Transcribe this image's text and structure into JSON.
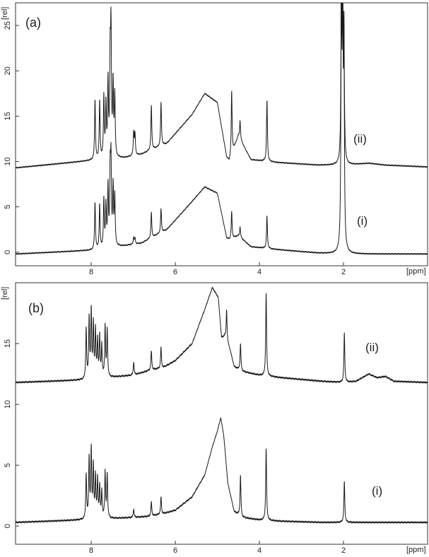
{
  "chart_data": [
    {
      "type": "line",
      "panel_label": "(a)",
      "xlabel": "[ppm]",
      "ylabel": "[rel]",
      "xlim": [
        9.8,
        0
      ],
      "ylim": [
        -1.5,
        27.5
      ],
      "x_reversed": true,
      "xticks": [
        8,
        6,
        4,
        2
      ],
      "yticks": [
        0,
        5,
        10,
        15,
        20,
        25
      ],
      "grid": false,
      "series": [
        {
          "name": "(ii)",
          "baseline": [
            [
              9.8,
              9.3
            ],
            [
              8.0,
              10.1
            ],
            [
              7.2,
              10.4
            ],
            [
              6.8,
              10.8
            ],
            [
              6.2,
              12.0
            ],
            [
              5.6,
              15.2
            ],
            [
              5.3,
              17.5
            ],
            [
              5.0,
              16.5
            ],
            [
              4.78,
              10.5
            ],
            [
              4.72,
              10.0
            ],
            [
              4.5,
              12.8
            ],
            [
              4.2,
              10.2
            ],
            [
              3.6,
              9.9
            ],
            [
              2.6,
              9.6
            ],
            [
              2.1,
              9.6
            ],
            [
              1.9,
              9.6
            ],
            [
              1.4,
              9.8
            ],
            [
              1.0,
              9.6
            ],
            [
              0,
              9.4
            ]
          ],
          "peaks": [
            {
              "x": 7.91,
              "h": 16.8
            },
            {
              "x": 7.8,
              "h": 16.6
            },
            {
              "x": 7.7,
              "h": 17.0
            },
            {
              "x": 7.65,
              "h": 16.0
            },
            {
              "x": 7.6,
              "h": 18.5
            },
            {
              "x": 7.55,
              "h": 20.2
            },
            {
              "x": 7.53,
              "h": 23.5
            },
            {
              "x": 7.48,
              "h": 18.2
            },
            {
              "x": 7.44,
              "h": 17.0
            },
            {
              "x": 6.99,
              "h": 13.2
            },
            {
              "x": 6.96,
              "h": 13.0
            },
            {
              "x": 6.57,
              "h": 16.2
            },
            {
              "x": 6.34,
              "h": 16.5
            },
            {
              "x": 4.66,
              "h": 17.8
            },
            {
              "x": 4.46,
              "h": 14.5
            },
            {
              "x": 3.82,
              "h": 16.8
            },
            {
              "x": 2.05,
              "h": 28.5
            },
            {
              "x": 2.02,
              "h": 26.0
            },
            {
              "x": 1.99,
              "h": 23.5
            }
          ]
        },
        {
          "name": "(i)",
          "baseline": [
            [
              9.8,
              -0.2
            ],
            [
              8.0,
              0.2
            ],
            [
              7.2,
              0.7
            ],
            [
              6.8,
              1.0
            ],
            [
              6.2,
              2.5
            ],
            [
              5.6,
              5.6
            ],
            [
              5.3,
              7.2
            ],
            [
              5.0,
              6.5
            ],
            [
              4.78,
              1.6
            ],
            [
              4.72,
              1.4
            ],
            [
              4.5,
              1.8
            ],
            [
              4.2,
              0.6
            ],
            [
              3.6,
              0.3
            ],
            [
              2.6,
              -0.1
            ],
            [
              2.1,
              -0.2
            ],
            [
              1.9,
              -0.2
            ],
            [
              1.0,
              -0.2
            ],
            [
              0,
              -0.2
            ]
          ],
          "peaks": [
            {
              "x": 7.91,
              "h": 5.5
            },
            {
              "x": 7.8,
              "h": 5.2
            },
            {
              "x": 7.7,
              "h": 5.7
            },
            {
              "x": 7.65,
              "h": 5.0
            },
            {
              "x": 7.6,
              "h": 7.0
            },
            {
              "x": 7.55,
              "h": 8.2
            },
            {
              "x": 7.53,
              "h": 9.3
            },
            {
              "x": 7.48,
              "h": 7.0
            },
            {
              "x": 7.44,
              "h": 6.0
            },
            {
              "x": 6.99,
              "h": 1.6
            },
            {
              "x": 6.96,
              "h": 1.5
            },
            {
              "x": 6.57,
              "h": 4.4
            },
            {
              "x": 6.34,
              "h": 4.8
            },
            {
              "x": 4.66,
              "h": 4.5
            },
            {
              "x": 4.46,
              "h": 2.8
            },
            {
              "x": 3.82,
              "h": 4.0
            },
            {
              "x": 2.05,
              "h": 28.5
            },
            {
              "x": 2.02,
              "h": 25.0
            },
            {
              "x": 1.99,
              "h": 22.0
            }
          ]
        }
      ]
    },
    {
      "type": "line",
      "panel_label": "(b)",
      "xlabel": "[ppm]",
      "ylabel": "[rel]",
      "xlim": [
        9.8,
        0
      ],
      "ylim": [
        -1.5,
        20
      ],
      "x_reversed": true,
      "xticks": [
        8,
        6,
        4,
        2
      ],
      "yticks": [
        0,
        5,
        10,
        15
      ],
      "grid": false,
      "series": [
        {
          "name": "(ii)",
          "baseline": [
            [
              9.8,
              11.8
            ],
            [
              8.2,
              12.0
            ],
            [
              7.0,
              12.4
            ],
            [
              6.6,
              12.8
            ],
            [
              6.3,
              13.0
            ],
            [
              6.0,
              13.6
            ],
            [
              5.6,
              15.0
            ],
            [
              5.3,
              17.8
            ],
            [
              5.12,
              19.6
            ],
            [
              4.98,
              18.8
            ],
            [
              4.9,
              15.5
            ],
            [
              4.82,
              15.6
            ],
            [
              4.7,
              14.5
            ],
            [
              4.6,
              13.1
            ],
            [
              4.4,
              12.7
            ],
            [
              4.0,
              12.4
            ],
            [
              3.5,
              12.2
            ],
            [
              2.5,
              11.9
            ],
            [
              2.0,
              11.8
            ],
            [
              1.7,
              11.9
            ],
            [
              1.4,
              12.5
            ],
            [
              1.2,
              12.2
            ],
            [
              1.0,
              12.3
            ],
            [
              0.8,
              11.9
            ],
            [
              0,
              11.8
            ]
          ],
          "peaks": [
            {
              "x": 8.12,
              "h": 16.2
            },
            {
              "x": 8.05,
              "h": 17.0
            },
            {
              "x": 8.0,
              "h": 17.6
            },
            {
              "x": 7.95,
              "h": 16.5
            },
            {
              "x": 7.9,
              "h": 16.0
            },
            {
              "x": 7.85,
              "h": 15.2
            },
            {
              "x": 7.8,
              "h": 15.5
            },
            {
              "x": 7.75,
              "h": 14.8
            },
            {
              "x": 7.67,
              "h": 16.4
            },
            {
              "x": 7.62,
              "h": 16.1
            },
            {
              "x": 6.99,
              "h": 13.5
            },
            {
              "x": 6.57,
              "h": 14.4
            },
            {
              "x": 6.34,
              "h": 14.7
            },
            {
              "x": 4.78,
              "h": 17.8
            },
            {
              "x": 4.45,
              "h": 15.0
            },
            {
              "x": 3.84,
              "h": 19.2
            },
            {
              "x": 1.98,
              "h": 15.9
            }
          ]
        },
        {
          "name": "(i)",
          "baseline": [
            [
              9.8,
              0.3
            ],
            [
              8.2,
              0.5
            ],
            [
              7.0,
              0.7
            ],
            [
              6.6,
              0.8
            ],
            [
              6.3,
              1.0
            ],
            [
              6.0,
              1.3
            ],
            [
              5.6,
              2.4
            ],
            [
              5.3,
              4.2
            ],
            [
              5.12,
              6.5
            ],
            [
              5.0,
              7.8
            ],
            [
              4.92,
              8.9
            ],
            [
              4.85,
              7.5
            ],
            [
              4.75,
              3.5
            ],
            [
              4.6,
              1.2
            ],
            [
              4.4,
              0.7
            ],
            [
              4.0,
              0.5
            ],
            [
              3.5,
              0.4
            ],
            [
              2.5,
              0.3
            ],
            [
              1.0,
              0.3
            ],
            [
              0,
              0.3
            ]
          ],
          "peaks": [
            {
              "x": 8.12,
              "h": 4.2
            },
            {
              "x": 8.05,
              "h": 5.5
            },
            {
              "x": 8.0,
              "h": 6.2
            },
            {
              "x": 7.95,
              "h": 4.8
            },
            {
              "x": 7.9,
              "h": 4.0
            },
            {
              "x": 7.85,
              "h": 3.8
            },
            {
              "x": 7.8,
              "h": 3.2
            },
            {
              "x": 7.75,
              "h": 2.8
            },
            {
              "x": 7.67,
              "h": 4.4
            },
            {
              "x": 7.62,
              "h": 4.2
            },
            {
              "x": 6.99,
              "h": 1.4
            },
            {
              "x": 6.57,
              "h": 2.0
            },
            {
              "x": 6.34,
              "h": 2.4
            },
            {
              "x": 4.45,
              "h": 4.2
            },
            {
              "x": 3.84,
              "h": 6.4
            },
            {
              "x": 1.98,
              "h": 3.7
            }
          ]
        }
      ]
    }
  ]
}
